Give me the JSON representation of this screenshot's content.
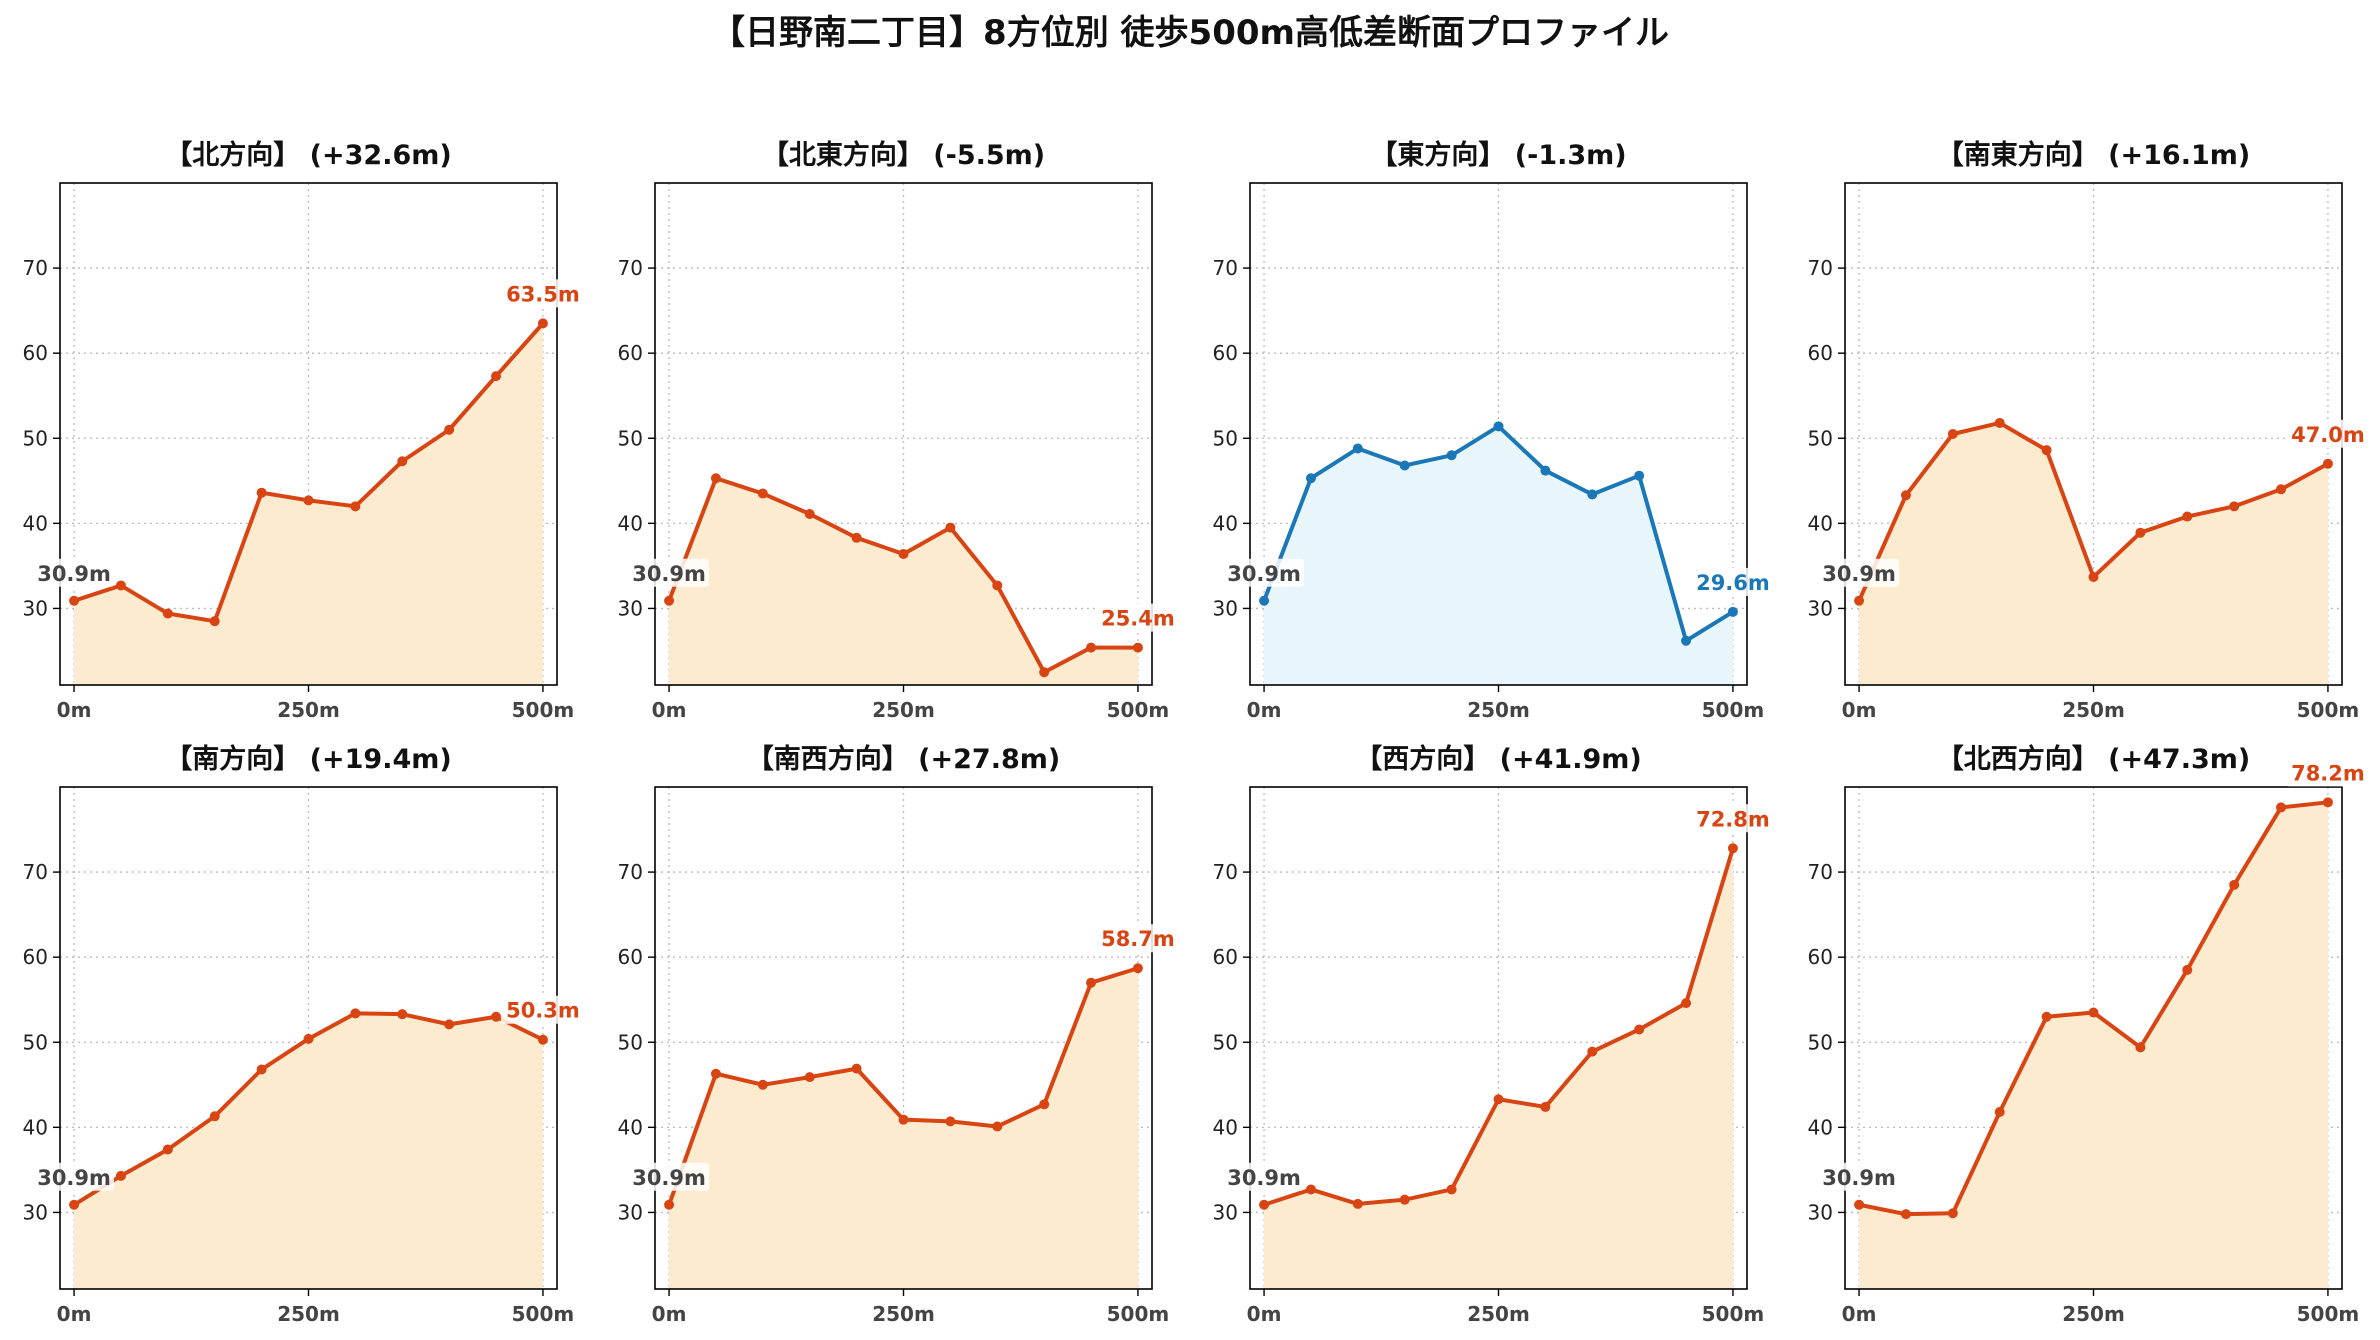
{
  "title": "【日野南二丁目】8方位別 徒歩500m高低差断面プロファイル",
  "colors": {
    "up_line": "#d94413",
    "up_fill": "#fdebd0",
    "flat_line": "#1a78b8",
    "flat_fill": "#e8f5fb",
    "start_label": "#444444"
  },
  "chart_data": [
    {
      "type": "area",
      "title": "【北方向】 (+32.6m)",
      "x": [
        0,
        50,
        100,
        150,
        200,
        250,
        300,
        350,
        400,
        450,
        500
      ],
      "y": [
        30.9,
        32.7,
        29.4,
        28.5,
        43.6,
        42.7,
        42.0,
        47.3,
        51.0,
        57.3,
        63.5
      ],
      "x_ticks": [
        0,
        250,
        500
      ],
      "x_tick_labels": [
        "0m",
        "250m",
        "500m"
      ],
      "y_ticks": [
        30,
        40,
        50,
        60,
        70
      ],
      "ylim": [
        21,
        80
      ],
      "xlim": [
        -15,
        515
      ],
      "start_label": "30.9m",
      "end_label": "63.5m",
      "style": "up",
      "grid": true
    },
    {
      "type": "area",
      "title": "【北東方向】 (-5.5m)",
      "x": [
        0,
        50,
        100,
        150,
        200,
        250,
        300,
        350,
        400,
        450,
        500
      ],
      "y": [
        30.9,
        45.3,
        43.5,
        41.1,
        38.3,
        36.4,
        39.5,
        32.7,
        22.5,
        25.4,
        25.4
      ],
      "x_ticks": [
        0,
        250,
        500
      ],
      "x_tick_labels": [
        "0m",
        "250m",
        "500m"
      ],
      "y_ticks": [
        30,
        40,
        50,
        60,
        70
      ],
      "ylim": [
        21,
        80
      ],
      "xlim": [
        -15,
        515
      ],
      "start_label": "30.9m",
      "end_label": "25.4m",
      "style": "up",
      "grid": true
    },
    {
      "type": "area",
      "title": "【東方向】 (-1.3m)",
      "x": [
        0,
        50,
        100,
        150,
        200,
        250,
        300,
        350,
        400,
        450,
        500
      ],
      "y": [
        30.9,
        45.3,
        48.8,
        46.8,
        48.0,
        51.4,
        46.2,
        43.4,
        45.6,
        26.2,
        29.6
      ],
      "x_ticks": [
        0,
        250,
        500
      ],
      "x_tick_labels": [
        "0m",
        "250m",
        "500m"
      ],
      "y_ticks": [
        30,
        40,
        50,
        60,
        70
      ],
      "ylim": [
        21,
        80
      ],
      "xlim": [
        -15,
        515
      ],
      "start_label": "30.9m",
      "end_label": "29.6m",
      "style": "flat",
      "grid": true
    },
    {
      "type": "area",
      "title": "【南東方向】 (+16.1m)",
      "x": [
        0,
        50,
        100,
        150,
        200,
        250,
        300,
        350,
        400,
        450,
        500
      ],
      "y": [
        30.9,
        43.3,
        50.5,
        51.8,
        48.6,
        33.7,
        38.9,
        40.8,
        42.0,
        44.0,
        47.0
      ],
      "x_ticks": [
        0,
        250,
        500
      ],
      "x_tick_labels": [
        "0m",
        "250m",
        "500m"
      ],
      "y_ticks": [
        30,
        40,
        50,
        60,
        70
      ],
      "ylim": [
        21,
        80
      ],
      "xlim": [
        -15,
        515
      ],
      "start_label": "30.9m",
      "end_label": "47.0m",
      "style": "up",
      "grid": true
    },
    {
      "type": "area",
      "title": "【南方向】 (+19.4m)",
      "x": [
        0,
        50,
        100,
        150,
        200,
        250,
        300,
        350,
        400,
        450,
        500
      ],
      "y": [
        30.9,
        34.3,
        37.4,
        41.3,
        46.8,
        50.4,
        53.4,
        53.3,
        52.1,
        53.0,
        50.3
      ],
      "x_ticks": [
        0,
        250,
        500
      ],
      "x_tick_labels": [
        "0m",
        "250m",
        "500m"
      ],
      "y_ticks": [
        30,
        40,
        50,
        60,
        70
      ],
      "ylim": [
        21,
        80
      ],
      "xlim": [
        -15,
        515
      ],
      "start_label": "30.9m",
      "end_label": "50.3m",
      "style": "up",
      "grid": true
    },
    {
      "type": "area",
      "title": "【南西方向】 (+27.8m)",
      "x": [
        0,
        50,
        100,
        150,
        200,
        250,
        300,
        350,
        400,
        450,
        500
      ],
      "y": [
        30.9,
        46.3,
        45.0,
        45.9,
        46.9,
        40.9,
        40.7,
        40.1,
        42.7,
        57.0,
        58.7
      ],
      "x_ticks": [
        0,
        250,
        500
      ],
      "x_tick_labels": [
        "0m",
        "250m",
        "500m"
      ],
      "y_ticks": [
        30,
        40,
        50,
        60,
        70
      ],
      "ylim": [
        21,
        80
      ],
      "xlim": [
        -15,
        515
      ],
      "start_label": "30.9m",
      "end_label": "58.7m",
      "style": "up",
      "grid": true
    },
    {
      "type": "area",
      "title": "【西方向】 (+41.9m)",
      "x": [
        0,
        50,
        100,
        150,
        200,
        250,
        300,
        350,
        400,
        450,
        500
      ],
      "y": [
        30.9,
        32.7,
        31.0,
        31.5,
        32.7,
        43.3,
        42.4,
        48.9,
        51.5,
        54.6,
        72.8
      ],
      "x_ticks": [
        0,
        250,
        500
      ],
      "x_tick_labels": [
        "0m",
        "250m",
        "500m"
      ],
      "y_ticks": [
        30,
        40,
        50,
        60,
        70
      ],
      "ylim": [
        21,
        80
      ],
      "xlim": [
        -15,
        515
      ],
      "start_label": "30.9m",
      "end_label": "72.8m",
      "style": "up",
      "grid": true
    },
    {
      "type": "area",
      "title": "【北西方向】 (+47.3m)",
      "x": [
        0,
        50,
        100,
        150,
        200,
        250,
        300,
        350,
        400,
        450,
        500
      ],
      "y": [
        30.9,
        29.8,
        29.9,
        41.8,
        53.0,
        53.5,
        49.4,
        58.5,
        68.5,
        77.6,
        78.2
      ],
      "x_ticks": [
        0,
        250,
        500
      ],
      "x_tick_labels": [
        "0m",
        "250m",
        "500m"
      ],
      "y_ticks": [
        30,
        40,
        50,
        60,
        70
      ],
      "ylim": [
        21,
        80
      ],
      "xlim": [
        -15,
        515
      ],
      "start_label": "30.9m",
      "end_label": "78.2m",
      "style": "up",
      "grid": true
    }
  ]
}
